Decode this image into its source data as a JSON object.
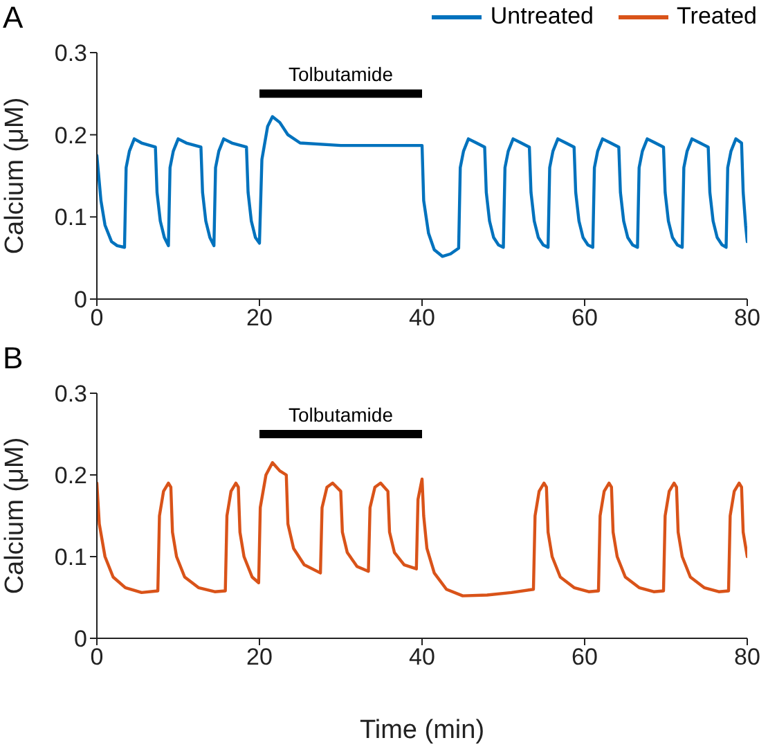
{
  "chart_data": [
    {
      "type": "line",
      "annotations": [
        "A",
        {
          "text": "Tolbutamide",
          "x": 30,
          "y": 0.25
        }
      ],
      "ylabel": "Calcium (μM)",
      "xlim": [
        0,
        80
      ],
      "xticks": [
        0,
        20,
        40,
        60,
        80
      ],
      "ylim": [
        0,
        0.3
      ],
      "yticks": [
        0,
        0.1,
        0.2,
        0.3
      ],
      "legend": "top right",
      "grid": false,
      "series": [
        {
          "color": "#000000",
          "x": [
            20,
            40
          ],
          "values": [
            0.25,
            0.25
          ]
        },
        {
          "name": "Untreated",
          "color": "#0072bd",
          "x": [
            0,
            0.5,
            1,
            1.8,
            2.5,
            3.4,
            3.6,
            4,
            4.6,
            5.5,
            7.2,
            7.4,
            7.8,
            8.3,
            8.8,
            9,
            9.4,
            10,
            11,
            12.8,
            13,
            13.4,
            13.9,
            14.4,
            14.6,
            15,
            15.6,
            16.6,
            18.4,
            18.6,
            19,
            19.5,
            20,
            20.3,
            21,
            21.6,
            22.5,
            23.5,
            25,
            30,
            35,
            40,
            40.2,
            40.8,
            41.5,
            42.5,
            43.5,
            44.5,
            44.7,
            45.1,
            45.7,
            46.7,
            47.7,
            47.9,
            48.3,
            48.8,
            49.4,
            50,
            50.2,
            50.6,
            51.2,
            52.2,
            53.2,
            53.4,
            53.8,
            54.3,
            54.9,
            55.5,
            55.7,
            56.1,
            56.7,
            57.7,
            58.7,
            58.9,
            59.3,
            59.8,
            60.4,
            61,
            61.2,
            61.6,
            62.2,
            63.2,
            64.2,
            64.4,
            64.8,
            65.3,
            65.9,
            66.5,
            66.7,
            67.1,
            67.7,
            68.7,
            69.7,
            69.9,
            70.3,
            70.8,
            71.4,
            72,
            72.2,
            72.6,
            73.2,
            74.2,
            75.2,
            75.4,
            75.8,
            76.3,
            76.9,
            77.4,
            77.6,
            78,
            78.6,
            79.3,
            79.5,
            79.8,
            80
          ],
          "values": [
            0.175,
            0.12,
            0.09,
            0.07,
            0.065,
            0.063,
            0.16,
            0.18,
            0.195,
            0.19,
            0.185,
            0.13,
            0.095,
            0.075,
            0.065,
            0.16,
            0.18,
            0.195,
            0.19,
            0.185,
            0.13,
            0.095,
            0.075,
            0.065,
            0.16,
            0.18,
            0.195,
            0.19,
            0.185,
            0.13,
            0.095,
            0.075,
            0.068,
            0.17,
            0.21,
            0.222,
            0.215,
            0.2,
            0.19,
            0.187,
            0.187,
            0.187,
            0.12,
            0.08,
            0.06,
            0.052,
            0.055,
            0.062,
            0.16,
            0.18,
            0.195,
            0.19,
            0.185,
            0.13,
            0.095,
            0.075,
            0.066,
            0.063,
            0.16,
            0.18,
            0.195,
            0.19,
            0.185,
            0.13,
            0.095,
            0.075,
            0.066,
            0.063,
            0.16,
            0.18,
            0.195,
            0.19,
            0.185,
            0.13,
            0.095,
            0.075,
            0.066,
            0.063,
            0.16,
            0.18,
            0.195,
            0.19,
            0.185,
            0.13,
            0.095,
            0.075,
            0.066,
            0.063,
            0.16,
            0.18,
            0.195,
            0.19,
            0.185,
            0.13,
            0.095,
            0.075,
            0.066,
            0.063,
            0.16,
            0.18,
            0.195,
            0.19,
            0.185,
            0.13,
            0.095,
            0.075,
            0.066,
            0.063,
            0.16,
            0.18,
            0.195,
            0.19,
            0.13,
            0.09,
            0.07
          ]
        }
      ]
    },
    {
      "type": "line",
      "annotations": [
        "B",
        {
          "text": "Tolbutamide",
          "x": 30,
          "y": 0.25
        }
      ],
      "xlabel": "Time (min)",
      "ylabel": "Calcium (μM)",
      "xlim": [
        0,
        80
      ],
      "xticks": [
        0,
        20,
        40,
        60,
        80
      ],
      "ylim": [
        0,
        0.3
      ],
      "yticks": [
        0,
        0.1,
        0.2,
        0.3
      ],
      "legend": "top right",
      "grid": false,
      "series": [
        {
          "color": "#000000",
          "x": [
            20,
            40
          ],
          "values": [
            0.25,
            0.25
          ]
        },
        {
          "name": "Treated",
          "color": "#d95319",
          "x": [
            0,
            0.3,
            1,
            2,
            3.5,
            5.5,
            7.5,
            7.7,
            8.2,
            8.8,
            9.1,
            9.3,
            9.8,
            10.8,
            12.5,
            14.5,
            15.8,
            16,
            16.5,
            17.1,
            17.4,
            17.6,
            18.1,
            19.1,
            19.9,
            20.1,
            20.8,
            21.6,
            22.5,
            23.3,
            23.5,
            24.2,
            25.5,
            27.5,
            27.7,
            28.3,
            29,
            30,
            30.2,
            30.8,
            32,
            33.4,
            33.6,
            34.2,
            34.9,
            35.8,
            36,
            36.6,
            37.8,
            39.3,
            39.5,
            40,
            40.2,
            40.6,
            41.5,
            43,
            45,
            48,
            51,
            53.7,
            53.9,
            54.4,
            55,
            55.3,
            55.5,
            56,
            57,
            58.7,
            60.5,
            61.7,
            61.9,
            62.4,
            63,
            63.3,
            63.5,
            64,
            65,
            66.7,
            68.5,
            69.7,
            69.9,
            70.4,
            71,
            71.3,
            71.5,
            72,
            73,
            74.7,
            76.5,
            77.7,
            77.9,
            78.4,
            79,
            79.3,
            79.5,
            80
          ],
          "values": [
            0.19,
            0.14,
            0.1,
            0.075,
            0.062,
            0.056,
            0.058,
            0.15,
            0.18,
            0.19,
            0.185,
            0.13,
            0.1,
            0.075,
            0.062,
            0.057,
            0.058,
            0.15,
            0.18,
            0.19,
            0.185,
            0.13,
            0.1,
            0.075,
            0.068,
            0.16,
            0.2,
            0.215,
            0.205,
            0.2,
            0.14,
            0.11,
            0.09,
            0.08,
            0.16,
            0.185,
            0.19,
            0.18,
            0.13,
            0.105,
            0.088,
            0.082,
            0.16,
            0.185,
            0.19,
            0.18,
            0.13,
            0.105,
            0.09,
            0.085,
            0.17,
            0.195,
            0.15,
            0.11,
            0.08,
            0.06,
            0.052,
            0.053,
            0.056,
            0.06,
            0.15,
            0.18,
            0.19,
            0.185,
            0.13,
            0.1,
            0.075,
            0.062,
            0.057,
            0.058,
            0.15,
            0.18,
            0.19,
            0.185,
            0.13,
            0.1,
            0.075,
            0.062,
            0.057,
            0.058,
            0.15,
            0.18,
            0.19,
            0.185,
            0.13,
            0.1,
            0.075,
            0.062,
            0.057,
            0.058,
            0.15,
            0.18,
            0.19,
            0.185,
            0.13,
            0.1
          ]
        }
      ]
    }
  ]
}
